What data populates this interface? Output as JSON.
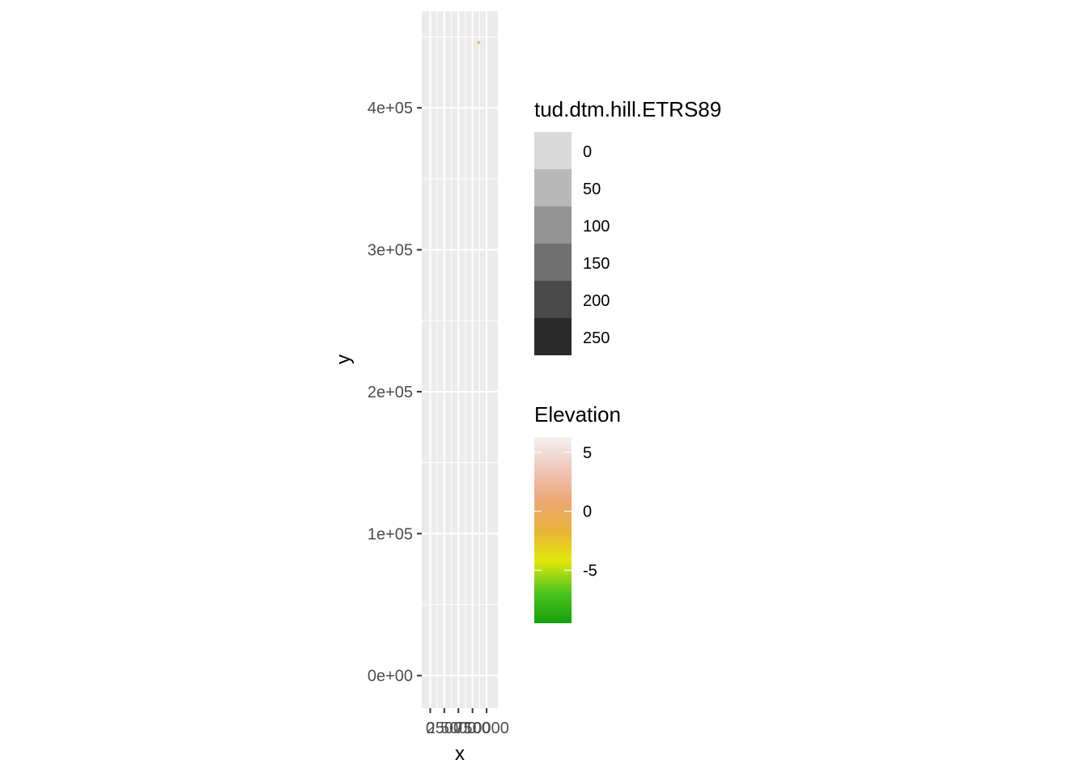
{
  "chart_data": {
    "type": "heatmap",
    "xlabel": "x",
    "ylabel": "y",
    "xlim": [
      -1500,
      12000
    ],
    "ylim": [
      -23000,
      468000
    ],
    "x_ticks": [
      0,
      2500,
      5000,
      7500,
      10000
    ],
    "x_tick_labels": [
      "0",
      "2500",
      "5000",
      "7500",
      "10000"
    ],
    "y_ticks": [
      0,
      100000,
      200000,
      300000,
      400000
    ],
    "y_tick_labels": [
      "0e+00",
      "1e+05",
      "2e+05",
      "3e+05",
      "4e+05"
    ],
    "grid": true,
    "panel_background": "#ebebeb",
    "series": [
      {
        "layer": "elevation raster",
        "color": "#e8b23a",
        "points": [
          {
            "x": 8600,
            "y": 446000,
            "value": 0
          }
        ]
      }
    ],
    "legends": [
      {
        "title": "tud.dtm.hill.ETRS89",
        "kind": "discrete",
        "entries": [
          {
            "label": "0",
            "color": "#d9d9d9"
          },
          {
            "label": "50",
            "color": "#b8b8b8"
          },
          {
            "label": "100",
            "color": "#949494"
          },
          {
            "label": "150",
            "color": "#707070"
          },
          {
            "label": "200",
            "color": "#4a4a4a"
          },
          {
            "label": "250",
            "color": "#2b2b2b"
          }
        ]
      },
      {
        "title": "Elevation",
        "kind": "continuous",
        "range": [
          -9.5,
          6.3
        ],
        "breaks": [
          5,
          0,
          -5
        ],
        "break_labels": [
          "5",
          "0",
          "-5"
        ],
        "colors": [
          "#14a00a",
          "#4ec41e",
          "#e3e70c",
          "#e8b23a",
          "#eda878",
          "#f0c8bc",
          "#f2f2f2"
        ]
      }
    ],
    "legend_position": "right"
  }
}
